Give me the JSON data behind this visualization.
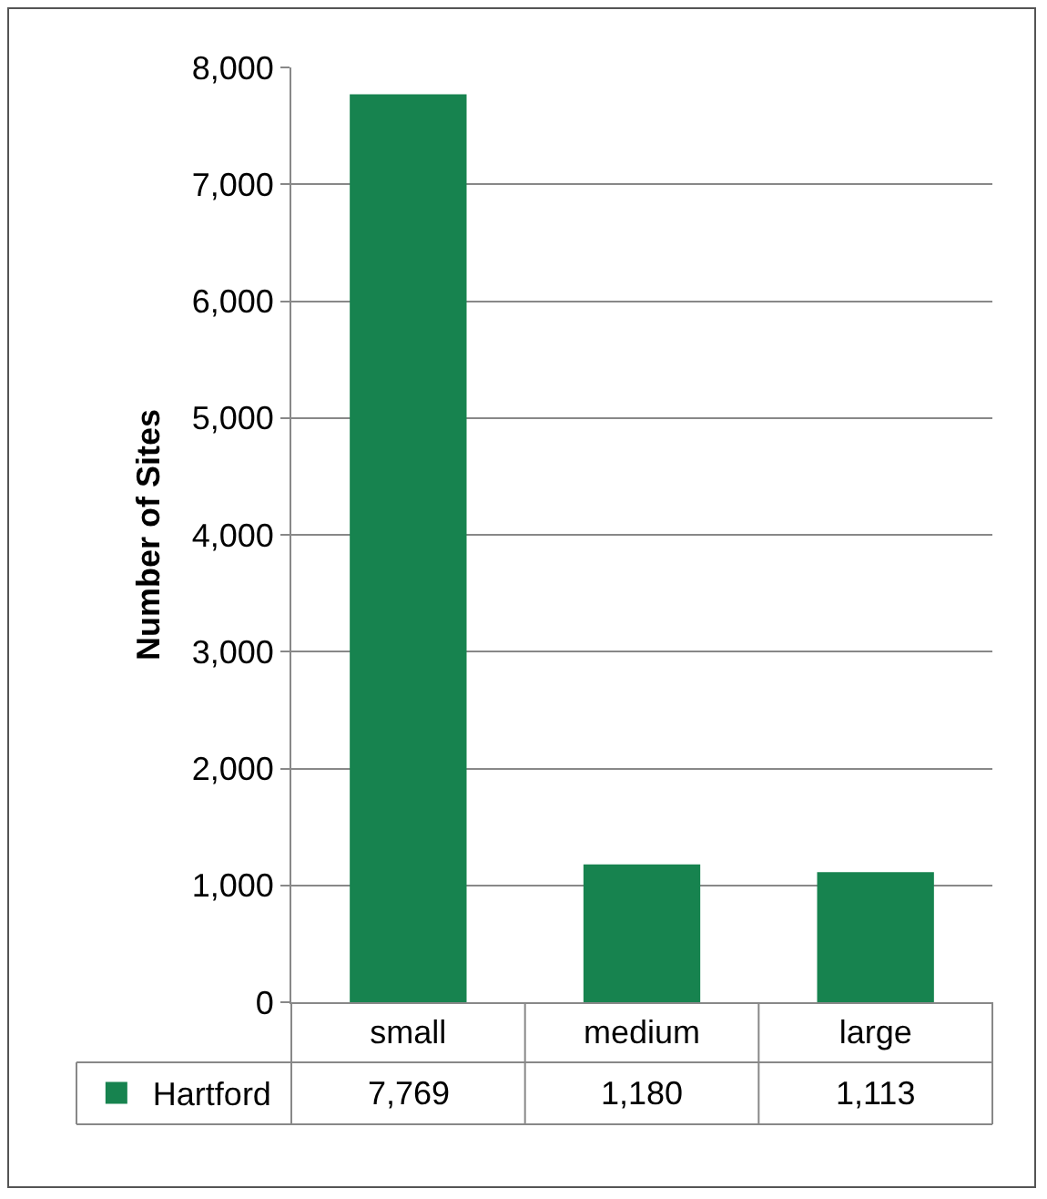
{
  "chart_data": {
    "type": "bar",
    "ylabel": "Number of Sites",
    "categories": [
      "small",
      "medium",
      "large"
    ],
    "series": [
      {
        "name": "Hartford",
        "color": "#17834f",
        "values": [
          7769,
          1180,
          1113
        ],
        "value_labels": [
          "7,769",
          "1,180",
          "1,113"
        ]
      }
    ],
    "ylim": [
      0,
      8000
    ],
    "yticks": [
      0,
      {
        "value": 1000,
        "label": "1,000"
      },
      {
        "value": 2000,
        "label": "2,000"
      },
      {
        "value": 3000,
        "label": "3,000"
      },
      {
        "value": 4000,
        "label": "4,000"
      },
      {
        "value": 5000,
        "label": "5,000"
      },
      {
        "value": 6000,
        "label": "6,000"
      },
      {
        "value": 7000,
        "label": "7,000"
      },
      {
        "value": 8000,
        "label": "8,000"
      }
    ],
    "grid": "y",
    "legend": "bottom left"
  }
}
